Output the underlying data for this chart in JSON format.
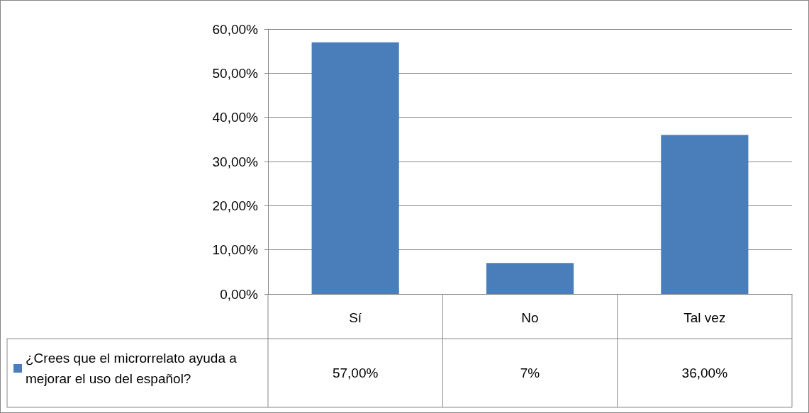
{
  "chart_data": {
    "type": "bar",
    "categories": [
      "Sí",
      "No",
      "Tal vez"
    ],
    "series": [
      {
        "name": "¿Crees que el microrrelato ayuda a mejorar el uso del español?",
        "color": "#4a7ebb",
        "values": [
          57,
          7,
          36
        ],
        "value_labels": [
          "57,00%",
          "7%",
          "36,00%"
        ]
      }
    ],
    "ylim": [
      0,
      60
    ],
    "yticks": [
      {
        "value": 0,
        "label": "0,00%"
      },
      {
        "value": 10,
        "label": "10,00%"
      },
      {
        "value": 20,
        "label": "20,00%"
      },
      {
        "value": 30,
        "label": "30,00%"
      },
      {
        "value": 40,
        "label": "40,00%"
      },
      {
        "value": 50,
        "label": "50,00%"
      },
      {
        "value": 60,
        "label": "60,00%"
      }
    ],
    "grid": "y",
    "legend": "bottom left"
  }
}
